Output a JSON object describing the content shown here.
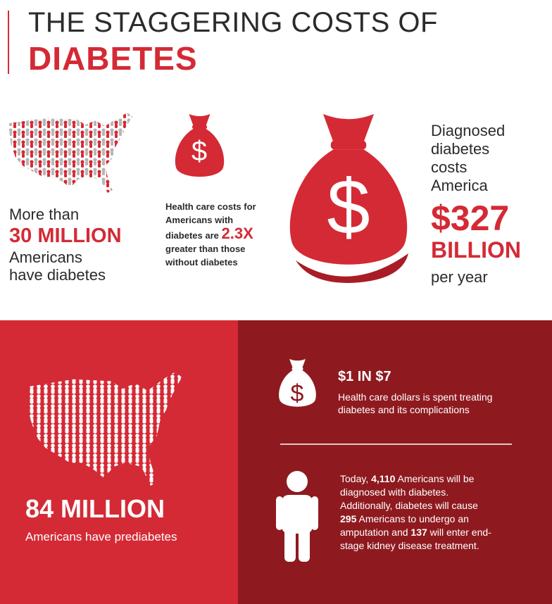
{
  "header": {
    "title_line1": "THE STAGGERING COSTS OF",
    "title_line2": "DIABETES"
  },
  "stats": [
    {
      "lines": [
        "More than",
        "30 MILLION",
        "Americans",
        "have diabetes"
      ]
    },
    {
      "lead": "Health care costs for Americans with diabetes are",
      "highlight": "2.3X",
      "tail": "greater than those without diabetes",
      "icon_symbol": "$"
    },
    {
      "lead": "Diagnosed diabetes costs America",
      "amount": "$327",
      "unit": "BILLION",
      "tail": "per year",
      "icon_symbol": "$"
    }
  ],
  "prediabetes": {
    "figure": "84 MILLION",
    "text": "Americans have prediabetes"
  },
  "facts": [
    {
      "headline": "$1 IN $7",
      "text": "Health care dollars is spent treating diabetes and its complications",
      "icon_symbol": "$"
    },
    {
      "parts": [
        "Today, ",
        "4,110",
        " Americans will be diagnosed with diabetes. Additionally, diabetes will cause ",
        "295",
        " Americans to undergo an amputation and ",
        "137",
        " will enter end-stage kidney disease treatment."
      ]
    }
  ]
}
